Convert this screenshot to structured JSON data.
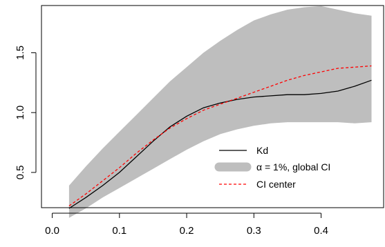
{
  "chart_data": {
    "type": "line",
    "title": "",
    "xlabel": "",
    "ylabel": "",
    "xlim": [
      -0.016,
      0.493
    ],
    "ylim": [
      0.2055,
      1.8946
    ],
    "x_ticks": [
      0.0,
      0.1,
      0.2,
      0.3,
      0.4
    ],
    "y_ticks": [
      0.5,
      1.0,
      1.5
    ],
    "x_tick_labels": [
      "0.0",
      "0.1",
      "0.2",
      "0.3",
      "0.4"
    ],
    "y_tick_labels": [
      "0.5",
      "1.0",
      "1.5"
    ],
    "grid": false,
    "legend_position": "bottom-right",
    "band": {
      "name": "α = 1%, global CI",
      "color": "#bebebe",
      "x": [
        0.025,
        0.05,
        0.075,
        0.1,
        0.125,
        0.15,
        0.175,
        0.2,
        0.225,
        0.25,
        0.275,
        0.3,
        0.325,
        0.35,
        0.375,
        0.4,
        0.425,
        0.45,
        0.475
      ],
      "lower": [
        0.12,
        0.2,
        0.29,
        0.37,
        0.45,
        0.53,
        0.61,
        0.69,
        0.76,
        0.82,
        0.86,
        0.89,
        0.91,
        0.92,
        0.92,
        0.92,
        0.92,
        0.91,
        0.92
      ],
      "upper": [
        0.39,
        0.55,
        0.7,
        0.84,
        0.98,
        1.12,
        1.26,
        1.38,
        1.5,
        1.6,
        1.69,
        1.77,
        1.82,
        1.86,
        1.88,
        1.89,
        1.86,
        1.83,
        1.81
      ]
    },
    "series": [
      {
        "name": "Kd",
        "color": "#000000",
        "dash": "solid",
        "x": [
          0.025,
          0.05,
          0.075,
          0.1,
          0.125,
          0.15,
          0.175,
          0.2,
          0.225,
          0.25,
          0.275,
          0.3,
          0.325,
          0.35,
          0.375,
          0.4,
          0.425,
          0.45,
          0.475
        ],
        "values": [
          0.2,
          0.29,
          0.39,
          0.5,
          0.63,
          0.76,
          0.88,
          0.97,
          1.04,
          1.08,
          1.11,
          1.13,
          1.14,
          1.15,
          1.15,
          1.16,
          1.18,
          1.22,
          1.27
        ]
      },
      {
        "name": "CI center",
        "color": "#ff0000",
        "dash": "dashed",
        "x": [
          0.025,
          0.05,
          0.075,
          0.1,
          0.125,
          0.15,
          0.175,
          0.2,
          0.225,
          0.25,
          0.275,
          0.3,
          0.325,
          0.35,
          0.375,
          0.4,
          0.425,
          0.45,
          0.475
        ],
        "values": [
          0.22,
          0.32,
          0.43,
          0.54,
          0.66,
          0.77,
          0.87,
          0.95,
          1.02,
          1.07,
          1.12,
          1.17,
          1.22,
          1.27,
          1.31,
          1.34,
          1.37,
          1.38,
          1.39
        ]
      }
    ],
    "legend": [
      {
        "label": "Kd",
        "style": "line",
        "color": "#000000"
      },
      {
        "label": "α = 1%, global CI",
        "style": "band",
        "color": "#bebebe"
      },
      {
        "label": "CI center",
        "style": "dashed",
        "color": "#ff0000"
      }
    ]
  }
}
